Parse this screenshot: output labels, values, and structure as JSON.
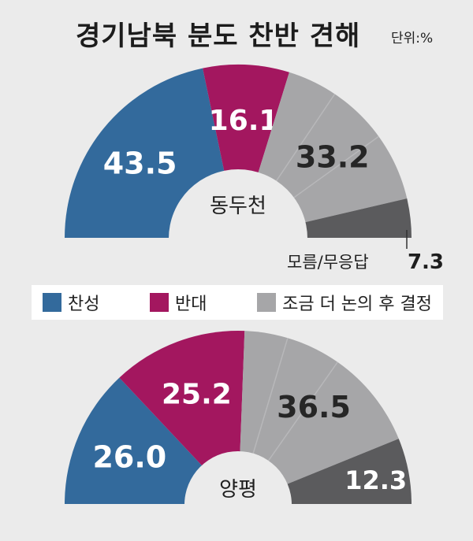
{
  "title": "경기남북 분도 찬반 견해",
  "unit_label": "단위:%",
  "colors": {
    "favor": "#336a9c",
    "oppose": "#a3175f",
    "discuss": "#a6a6a8",
    "unknown": "#5b5b5d",
    "divider": "#b8b8ba",
    "hole": "#ebebeb"
  },
  "legend": [
    {
      "label": "찬성",
      "color": "#336a9c"
    },
    {
      "label": "반대",
      "color": "#a3175f"
    },
    {
      "label": "조금 더 논의 후 결정",
      "color": "#a6a6a8"
    }
  ],
  "chart_data": [
    {
      "type": "pie",
      "subtype": "half-donut",
      "center_label": "동두천",
      "categories": [
        "찬성",
        "반대",
        "조금 더 논의 후 결정",
        "모름/무응답"
      ],
      "values": [
        43.5,
        16.1,
        33.2,
        7.3
      ],
      "data_labels": [
        "43.5",
        "16.1",
        "33.2",
        "7.3"
      ],
      "unknown_label": "모름/무응답"
    },
    {
      "type": "pie",
      "subtype": "half-donut",
      "center_label": "양평",
      "categories": [
        "찬성",
        "반대",
        "조금 더 논의 후 결정",
        "모름/무응답"
      ],
      "values": [
        26.0,
        25.2,
        36.5,
        12.3
      ],
      "data_labels": [
        "26.0",
        "25.2",
        "36.5",
        "12.3"
      ]
    }
  ]
}
